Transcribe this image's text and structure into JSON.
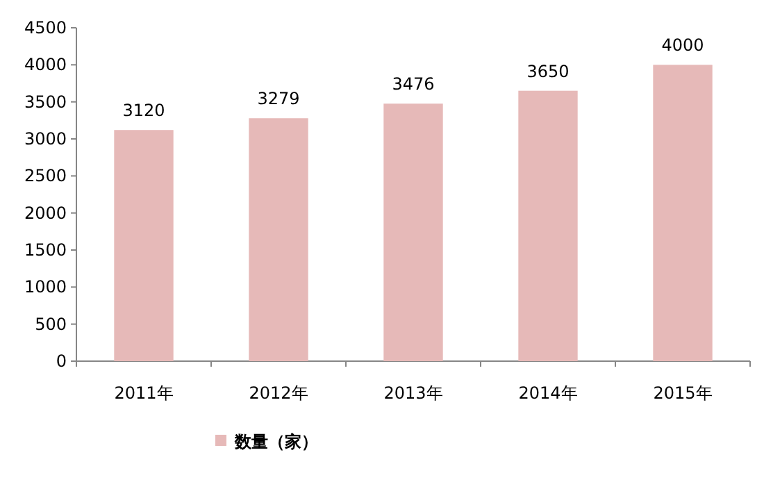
{
  "chart_data": {
    "type": "bar",
    "categories": [
      "2011年",
      "2012年",
      "2013年",
      "2014年",
      "2015年"
    ],
    "series": [
      {
        "name": "数量（家）",
        "color": "#e6b9b8",
        "values": [
          3120,
          3279,
          3476,
          3650,
          4000
        ]
      }
    ],
    "ylim": [
      0,
      4500
    ],
    "yticks": [
      0,
      500,
      1000,
      1500,
      2000,
      2500,
      3000,
      3500,
      4000,
      4500
    ],
    "data_labels": true,
    "legend": "bottom"
  }
}
